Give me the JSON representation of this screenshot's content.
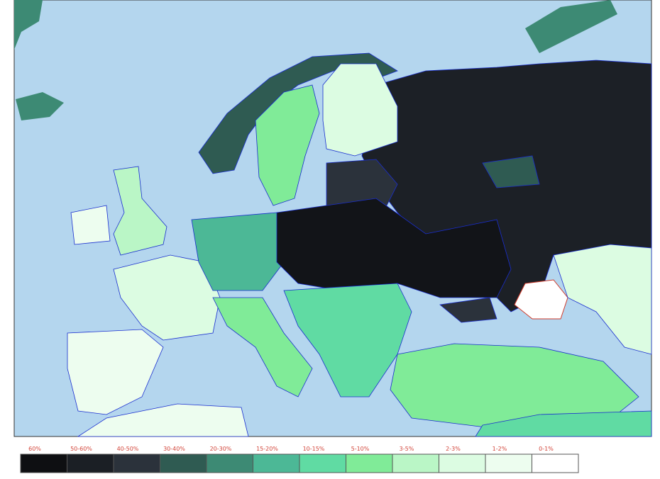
{
  "legend": {
    "items": [
      {
        "label": "60%",
        "color": "#0e0f12"
      },
      {
        "label": "50-60%",
        "color": "#1b1f25"
      },
      {
        "label": "40-50%",
        "color": "#2b323b"
      },
      {
        "label": "30-40%",
        "color": "#2f5b52"
      },
      {
        "label": "20-30%",
        "color": "#3d8a74"
      },
      {
        "label": "15-20%",
        "color": "#4cb896"
      },
      {
        "label": "10-15%",
        "color": "#60dba3"
      },
      {
        "label": "5-10%",
        "color": "#80eb98"
      },
      {
        "label": "3-5%",
        "color": "#baf6c6"
      },
      {
        "label": "2-3%",
        "color": "#dcfce2"
      },
      {
        "label": "1-2%",
        "color": "#edfdef"
      },
      {
        "label": "0-1%",
        "color": "#ffffff"
      }
    ]
  }
}
